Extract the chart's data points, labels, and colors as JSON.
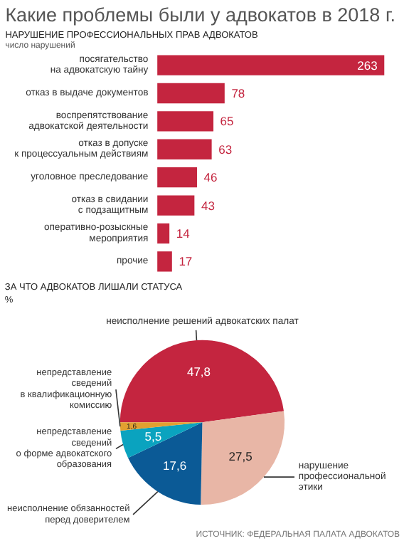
{
  "chart_data": [
    {
      "type": "bar",
      "orientation": "horizontal",
      "title": "Какие проблемы были у адвокатов в 2018 г.",
      "subtitle": "НАРУШЕНИЕ ПРОФЕССИОНАЛЬНЫХ ПРАВ АДВОКАТОВ",
      "xlabel": "число нарушений",
      "categories": [
        "посягательство\nна адвокатскую тайну",
        "отказ в выдаче документов",
        "воспрепятствование\nадвокатской деятельности",
        "отказ в допуске\nк процессуальным действиям",
        "уголовное преследование",
        "отказ в свидании\nс подзащитным",
        "оперативно-розыскные\nмероприятия",
        "прочие"
      ],
      "values": [
        263,
        78,
        65,
        63,
        46,
        43,
        14,
        17
      ],
      "color": "#c4253f",
      "data_labels": true
    },
    {
      "type": "pie",
      "title": "ЗА ЧТО АДВОКАТОВ ЛИШАЛИ СТАТУСА",
      "subtitle": "%",
      "categories": [
        "неисполнение решений адвокатских палат",
        "нарушение\nпрофессиональной\nэтики",
        "неисполнение обязанностей\nперед доверителем",
        "непредставление\nсведений\nо форме адвокатского\nобразования",
        "непредставление\nсведений\nв квалификационную\nкомиссию"
      ],
      "values": [
        47.8,
        27.5,
        17.6,
        5.5,
        1.6
      ],
      "colors": [
        "#c4253f",
        "#e8b6a6",
        "#0b5a96",
        "#0aa3bf",
        "#e2a030"
      ],
      "value_labels": [
        "47,8",
        "27,5",
        "17,6",
        "5,5",
        "1,6"
      ],
      "annotations": [
        "ИСТОЧНИК: ФЕДЕРАЛЬНАЯ ПАЛАТА АДВОКАТОВ"
      ]
    }
  ]
}
